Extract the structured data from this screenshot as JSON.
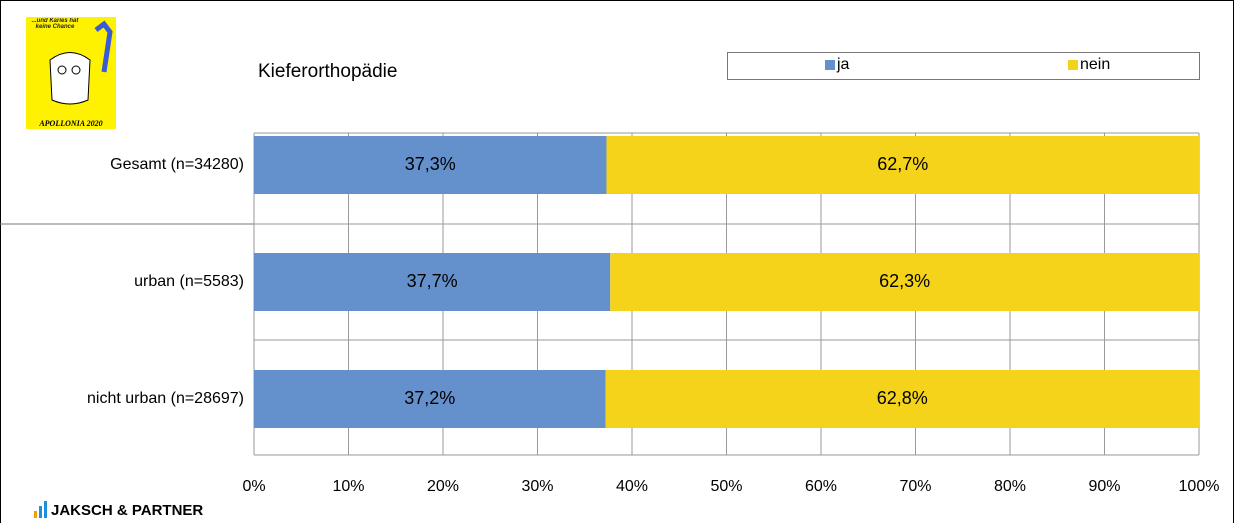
{
  "chart_data": {
    "type": "stacked-barh",
    "title": "Kieferorthopädie",
    "categories": [
      "Gesamt (n=34280)",
      "urban (n=5583)",
      "nicht urban (n=28697)"
    ],
    "series": [
      {
        "name": "ja",
        "color": "#6490cc",
        "values": [
          37.3,
          37.7,
          37.2
        ],
        "value_labels": [
          "37,3%",
          "37,7%",
          "37,2%"
        ]
      },
      {
        "name": "nein",
        "color": "#f5d31a",
        "values": [
          62.7,
          62.3,
          62.8
        ],
        "value_labels": [
          "62,7%",
          "62,3%",
          "62,8%"
        ]
      }
    ],
    "xlim": [
      0,
      100
    ],
    "xticks": [
      {
        "value": 0,
        "label": "0%"
      },
      {
        "value": 10,
        "label": "10%"
      },
      {
        "value": 20,
        "label": "20%"
      },
      {
        "value": 30,
        "label": "30%"
      },
      {
        "value": 40,
        "label": "40%"
      },
      {
        "value": 50,
        "label": "50%"
      },
      {
        "value": 60,
        "label": "60%"
      },
      {
        "value": 70,
        "label": "70%"
      },
      {
        "value": 80,
        "label": "80%"
      },
      {
        "value": 90,
        "label": "90%"
      },
      {
        "value": 100,
        "label": "100%"
      }
    ],
    "grid": true,
    "legend": "top-right"
  },
  "logos": {
    "apollonia_slogan": "...und Karies hat keine Chance",
    "apollonia_name": "APOLLONIA 2020",
    "company": "JAKSCH & PARTNER"
  }
}
